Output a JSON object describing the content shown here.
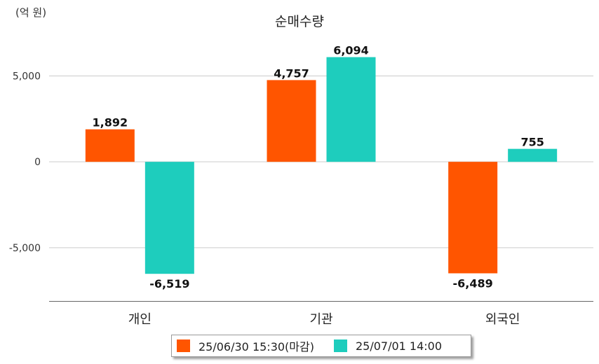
{
  "header": {
    "unit_label": "(억 원)",
    "title": "순매수량"
  },
  "legend": {
    "items": [
      {
        "label": "25/06/30 15:30(마감)",
        "color": "#ff5500"
      },
      {
        "label": "25/07/01 14:00",
        "color": "#1ecdbd"
      }
    ]
  },
  "chart_data": {
    "type": "bar",
    "title": "순매수량",
    "unit": "(억 원)",
    "categories": [
      "개인",
      "기관",
      "외국인"
    ],
    "series": [
      {
        "name": "25/06/30 15:30(마감)",
        "color": "#ff5500",
        "values": [
          1892,
          4757,
          -6489
        ]
      },
      {
        "name": "25/07/01 14:00",
        "color": "#1ecdbd",
        "values": [
          -6519,
          6094,
          755
        ]
      }
    ],
    "y_ticks": [
      5000,
      0,
      -5000
    ],
    "y_tick_labels": [
      "5,000",
      "0",
      "-5,000"
    ],
    "ylim": [
      -8100,
      7300
    ],
    "grid": true,
    "legend_position": "bottom"
  }
}
